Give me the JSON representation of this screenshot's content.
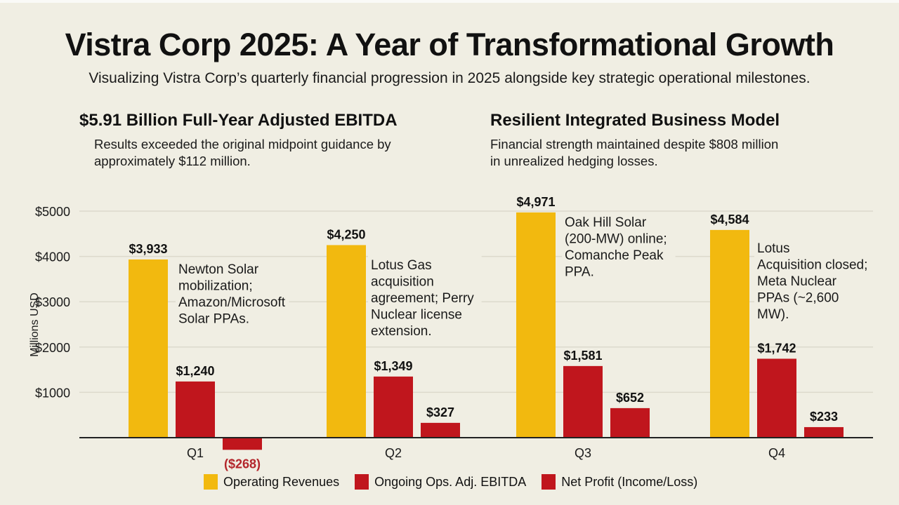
{
  "title": "Vistra Corp 2025: A Year of Transformational Growth",
  "subtitle": "Visualizing Vistra Corp’s quarterly financial progression in 2025 alongside key strategic operational milestones.",
  "highlights": [
    {
      "heading": "$5.91 Billion Full-Year Adjusted EBITDA",
      "text": [
        "Results exceeded the original midpoint guidance by",
        "approximately $112 million."
      ]
    },
    {
      "heading": "Resilient Integrated Business Model",
      "text": [
        "Financial strength maintained despite $808 million",
        "in unrealized hedging losses."
      ]
    }
  ],
  "chart_data": {
    "type": "bar",
    "ylabel": "Millions USD",
    "xlabel": "",
    "ylim": [
      0,
      5000
    ],
    "yticks": [
      1000,
      2000,
      3000,
      4000,
      5000
    ],
    "ytick_labels": [
      "$1000",
      "$2000",
      "$3000",
      "$4000",
      "$5000"
    ],
    "grid": true,
    "legend_position": "bottom",
    "categories": [
      "Q1",
      "Q2",
      "Q3",
      "Q4"
    ],
    "series": [
      {
        "name": "Operating Revenues",
        "color": "#f2b90f",
        "values": [
          3933,
          4250,
          4971,
          4584
        ],
        "labels": [
          "$3,933",
          "$4,250",
          "$4,971",
          "$4,584"
        ]
      },
      {
        "name": "Ongoing Ops. Adj. EBITDA",
        "color": "#c0161d",
        "values": [
          1240,
          1349,
          1581,
          1742
        ],
        "labels": [
          "$1,240",
          "$1,349",
          "$1,581",
          "$1,742"
        ]
      },
      {
        "name": "Net Profit (Income/Loss)",
        "color": "#c0161d",
        "values": [
          -268,
          327,
          652,
          233
        ],
        "labels": [
          "($268)",
          "$327",
          "$652",
          "$233"
        ]
      }
    ],
    "negative_label_color": "#b3262b",
    "annotations": [
      [
        "Newton Solar",
        "mobilization;",
        "Amazon/Microsoft",
        "Solar PPAs."
      ],
      [
        "Lotus Gas",
        "acquisition",
        "agreement; Perry",
        "Nuclear license",
        "extension."
      ],
      [
        "Oak Hill Solar",
        "(200-MW) online;",
        "Comanche Peak",
        "PPA."
      ],
      [
        "Lotus",
        "Acquisition closed;",
        "Meta Nuclear",
        "PPAs (~2,600",
        "MW)."
      ]
    ]
  }
}
